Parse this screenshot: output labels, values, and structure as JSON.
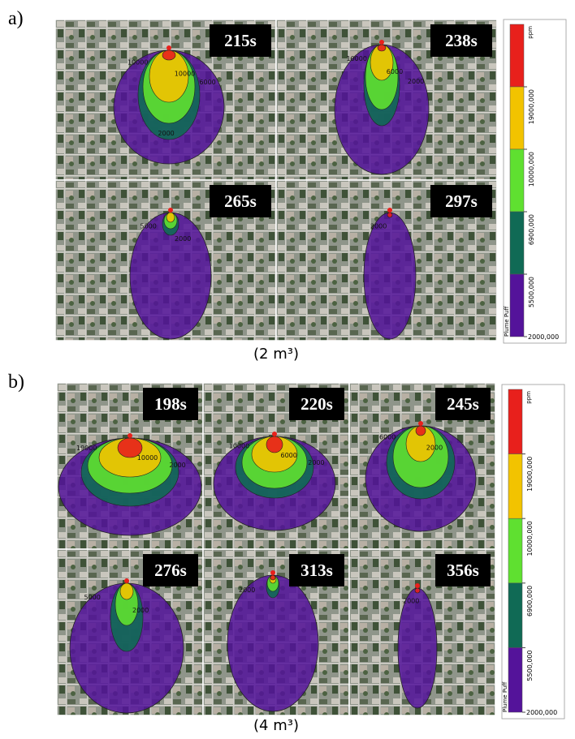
{
  "panels": [
    {
      "label": "a)",
      "caption": "(2 m³)",
      "frames": [
        {
          "time": "215s",
          "contours": [
            "10000",
            "10000",
            "6000",
            "2000"
          ]
        },
        {
          "time": "238s",
          "contours": [
            "10000",
            "6000",
            "2000"
          ]
        },
        {
          "time": "265s",
          "contours": [
            "5000",
            "2000"
          ]
        },
        {
          "time": "297s",
          "contours": [
            "2000"
          ]
        }
      ],
      "colorbar": {
        "unit": "ppm",
        "name": "Plume Puff",
        "colors": [
          "#e8201c",
          "#f2c300",
          "#5fe030",
          "#106a55",
          "#54139a"
        ],
        "ticks": [
          "19000,000",
          "10000,000",
          "6900,000",
          "5500,000",
          "2000,000"
        ]
      }
    },
    {
      "label": "b)",
      "caption": "(4 m³)",
      "frames": [
        {
          "time": "198s",
          "contours": [
            "19000",
            "10000",
            "2000"
          ]
        },
        {
          "time": "220s",
          "contours": [
            "10000",
            "6000",
            "2000"
          ]
        },
        {
          "time": "245s",
          "contours": [
            "6000",
            "2000"
          ]
        },
        {
          "time": "276s",
          "contours": [
            "5000",
            "2000"
          ]
        },
        {
          "time": "313s",
          "contours": [
            "2000"
          ]
        },
        {
          "time": "356s",
          "contours": [
            "2000"
          ]
        }
      ],
      "colorbar": {
        "unit": "ppm",
        "name": "Plume Puff",
        "colors": [
          "#e8201c",
          "#f2c300",
          "#5fe030",
          "#106a55",
          "#54139a"
        ],
        "ticks": [
          "19000,000",
          "10000,000",
          "6900,000",
          "5500,000",
          "2000,000"
        ]
      }
    }
  ]
}
